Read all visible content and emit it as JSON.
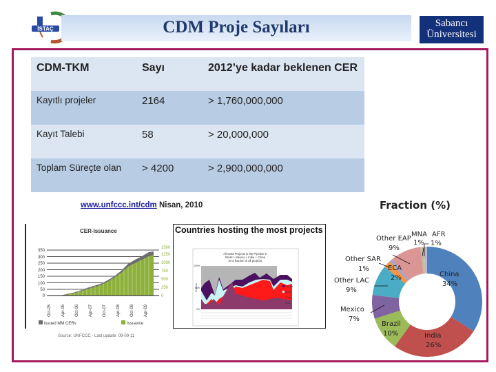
{
  "header": {
    "title": "CDM Proje Sayıları",
    "logo_left_text": "İSTAÇ",
    "logo_right_line1": "Sabancı",
    "logo_right_line2": "Üniversitesi"
  },
  "colors": {
    "frame": "#a3195b",
    "title_text": "#1f3a6b",
    "table_header_bg": "#dce6f2",
    "table_alt_bg": "#b8cce4",
    "logo_right_bg": "#13307a"
  },
  "table": {
    "headers": [
      "CDM-TKM",
      "Sayı",
      "2012’ye kadar beklenen CER"
    ],
    "rows": [
      [
        "Kayıtlı projeler",
        "2164",
        "> 1,760,000,000"
      ],
      [
        "Kayıt Talebi",
        "58",
        "> 20,000,000"
      ],
      [
        "Toplam Süreçte olan",
        "> 4200",
        "> 2,900,000,000"
      ]
    ]
  },
  "source": {
    "link": "www.unfccc.int/cdm",
    "date": " Nisan, 2010"
  },
  "chart_data": [
    {
      "type": "bar",
      "title": "CER-Issuance",
      "categories": [
        "Oct-05",
        "Apr-06",
        "Oct-06",
        "Apr-07",
        "Oct-07",
        "Apr-08",
        "Oct-08",
        "Apr-09"
      ],
      "left_axis_ticks": [
        "0",
        "50",
        "100",
        "150",
        "200",
        "250",
        "300",
        "350"
      ],
      "right_axis_ticks": [
        "0",
        "250",
        "500",
        "750",
        "1000",
        "1250",
        "1500"
      ],
      "series": [
        {
          "name": "Issued MM CERs",
          "color": "#6d6e71",
          "values": [
            0,
            5,
            30,
            65,
            110,
            180,
            250,
            320
          ]
        },
        {
          "name": "Issuance",
          "color": "#8db03a",
          "values": [
            0,
            5,
            28,
            60,
            100,
            165,
            230,
            290
          ]
        }
      ],
      "ylim": [
        0,
        350
      ],
      "y2lim": [
        0,
        1500
      ],
      "footer": "Source: UNFCCC - Last update: 09-09-11",
      "grid": true
    },
    {
      "type": "area",
      "title": "Countries hosting the most projects",
      "subtitle": "All CDM Projects in the Pipeline in Brazil + Mexico + India + China as a fraction of all projects",
      "ylabel": "Projects",
      "yticks": [
        "0%",
        "10%",
        "20%",
        "30%",
        "40%",
        "50%",
        "60%",
        "70%",
        "80%",
        "90%",
        "100%"
      ],
      "legend": [
        "Mexico",
        "Brazil",
        "China",
        "India"
      ],
      "series_colors": [
        "#4b1060",
        "#c8f4f4",
        "#ff1a1a",
        "#8b3a6b"
      ]
    },
    {
      "type": "pie",
      "title": "Fraction (%)",
      "categories": [
        "China",
        "India",
        "Brazil",
        "Mexico",
        "Other LAC",
        "ECA",
        "Other SAR",
        "Other EAP",
        "MNA",
        "AFR"
      ],
      "values": [
        34,
        26,
        10,
        7,
        9,
        2,
        1,
        9,
        1,
        1
      ],
      "labels": [
        "34%",
        "26%",
        "10%",
        "7%",
        "9%",
        "2%",
        "1%",
        "9%",
        "1%",
        "1%"
      ],
      "colors": [
        "#4f81bd",
        "#c0504d",
        "#9bbb59",
        "#8064a2",
        "#4bacc6",
        "#f79646",
        "#a5a5c8",
        "#d99694",
        "#c4bd97",
        "#b7b7d6"
      ],
      "donut": true
    }
  ]
}
